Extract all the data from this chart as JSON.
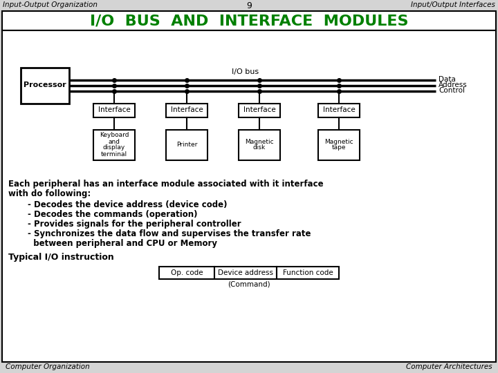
{
  "title_left": "Input-Output Organization",
  "title_center": "9",
  "title_right": "Input/Output Interfaces",
  "main_title": "I/O  BUS  AND  INTERFACE  MODULES",
  "main_title_color": "#008000",
  "bg_color": "#d4d4d4",
  "white": "#ffffff",
  "black": "#000000",
  "bus_labels": [
    "Data",
    "Address",
    "Control"
  ],
  "io_bus_label": "I/O bus",
  "processor_label": "Processor",
  "interface_labels": [
    "Interface",
    "Interface",
    "Interface",
    "Interface"
  ],
  "device_labels": [
    [
      "Keyboard",
      "and",
      "display",
      "terminal"
    ],
    [
      "Printer"
    ],
    [
      "Magnetic",
      "disk"
    ],
    [
      "Magnetic",
      "tape"
    ]
  ],
  "body_text_bold_1": "Each peripheral has an interface module associated with it interface",
  "body_text_bold_2": "with do following:",
  "bullet_points": [
    "- Decodes the device address (device code)",
    "- Decodes the commands (operation)",
    "- Provides signals for the peripheral controller",
    "- Synchronizes the data flow and supervises the transfer rate",
    "  between peripheral and CPU or Memory"
  ],
  "typical_label": "Typical I/O instruction",
  "instruction_boxes": [
    "Op. code",
    "Device address",
    "Function code"
  ],
  "command_label": "(Command)",
  "footer_left": "Computer Organization",
  "footer_right": "Computer Architectures"
}
